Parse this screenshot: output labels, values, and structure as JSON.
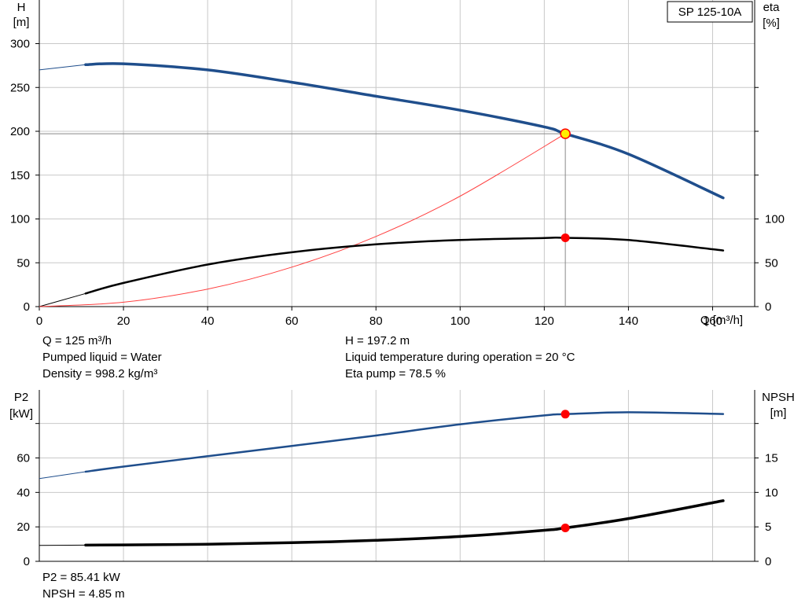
{
  "model": "SP 125-10A",
  "top": {
    "left_axis": {
      "label_line1": "H",
      "label_line2": "[m]"
    },
    "right_axis": {
      "label_line1": "eta",
      "label_line2": "[%]"
    },
    "x_axis_label": "Q [m³/h]",
    "info_left": [
      "Q = 125 m³/h",
      "Pumped liquid = Water",
      "Density = 998.2 kg/m³"
    ],
    "info_right": [
      "H = 197.2 m",
      "Liquid temperature during operation = 20 °C",
      "Eta pump = 78.5 %"
    ]
  },
  "bottom": {
    "left_axis": {
      "label_line1": "P2",
      "label_line2": "[kW]"
    },
    "right_axis": {
      "label_line1": "NPSH",
      "label_line2": "[m]"
    },
    "info_left": [
      "P2 = 85.41 kW",
      "NPSH = 4.85 m"
    ]
  },
  "colors": {
    "head": "#1f4e8c",
    "eta": "#000000",
    "system": "#ff4040",
    "operating_point": "#ff0000",
    "grid": "#c8c8c8"
  },
  "chart_data": [
    {
      "type": "line",
      "title": "SP 125-10A",
      "xlabel": "Q [m³/h]",
      "ylabel": "H [m]",
      "y2label": "eta [%]",
      "xlim": [
        0,
        170
      ],
      "ylim": [
        0,
        300
      ],
      "y2lim": [
        0,
        100
      ],
      "xticks": [
        0,
        20,
        40,
        60,
        80,
        100,
        120,
        140,
        160
      ],
      "yticks": [
        0,
        50,
        100,
        150,
        200,
        250,
        300
      ],
      "y2ticks": [
        0,
        50,
        100
      ],
      "grid": true,
      "series": [
        {
          "name": "H",
          "axis": "left",
          "x": [
            0,
            11,
            20,
            40,
            60,
            80,
            100,
            120,
            125,
            140,
            162.5
          ],
          "values": [
            270,
            276,
            277,
            270,
            256,
            240,
            224,
            205,
            197.2,
            174,
            124
          ]
        },
        {
          "name": "eta",
          "axis": "right",
          "x": [
            0,
            11,
            20,
            40,
            60,
            80,
            100,
            120,
            125,
            140,
            162.5
          ],
          "values": [
            0,
            15,
            27,
            48,
            62,
            71,
            76,
            78.3,
            78.5,
            76,
            64
          ]
        },
        {
          "name": "system curve",
          "axis": "left",
          "x": [
            0,
            20,
            40,
            60,
            80,
            100,
            125
          ],
          "values": [
            0,
            5,
            20,
            45,
            80,
            126,
            197.2
          ]
        }
      ],
      "operating_point": {
        "Q": 125,
        "H": 197.2,
        "eta": 78.5
      }
    },
    {
      "type": "line",
      "ylabel": "P2 [kW]",
      "y2label": "NPSH [m]",
      "xlim": [
        0,
        170
      ],
      "ylim": [
        0,
        80
      ],
      "y2lim": [
        0,
        20
      ],
      "yticks": [
        0,
        20,
        40,
        60
      ],
      "y2ticks": [
        0,
        5,
        10,
        15
      ],
      "grid": true,
      "series": [
        {
          "name": "P2",
          "axis": "left",
          "x": [
            0,
            11,
            20,
            40,
            60,
            80,
            100,
            120,
            125,
            140,
            162.5
          ],
          "values": [
            48,
            52,
            55,
            61,
            67,
            73,
            79.5,
            84.7,
            85.41,
            86.5,
            85.5
          ]
        },
        {
          "name": "NPSH",
          "axis": "right",
          "x": [
            0,
            11,
            20,
            40,
            60,
            80,
            100,
            120,
            125,
            140,
            162.5
          ],
          "values": [
            2.3,
            2.35,
            2.38,
            2.48,
            2.7,
            3.05,
            3.6,
            4.5,
            4.85,
            6.2,
            8.8
          ]
        }
      ],
      "operating_point": {
        "Q": 125,
        "P2": 85.41,
        "NPSH": 4.85
      }
    }
  ]
}
